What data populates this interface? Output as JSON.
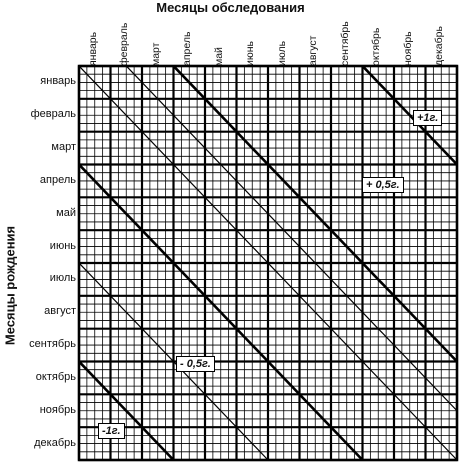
{
  "title": "Месяцы обследования",
  "ylabel": "Месяцы рождения",
  "months": [
    "январь",
    "февраль",
    "март",
    "апрель",
    "май",
    "июнь",
    "июль",
    "август",
    "сентябрь",
    "октябрь",
    "ноябрь",
    "декабрь"
  ],
  "bands": {
    "plus1": "+1г.",
    "plus05": "+ 0,5г.",
    "minus05": "- 0,5г.",
    "minus1": "-1г."
  }
}
